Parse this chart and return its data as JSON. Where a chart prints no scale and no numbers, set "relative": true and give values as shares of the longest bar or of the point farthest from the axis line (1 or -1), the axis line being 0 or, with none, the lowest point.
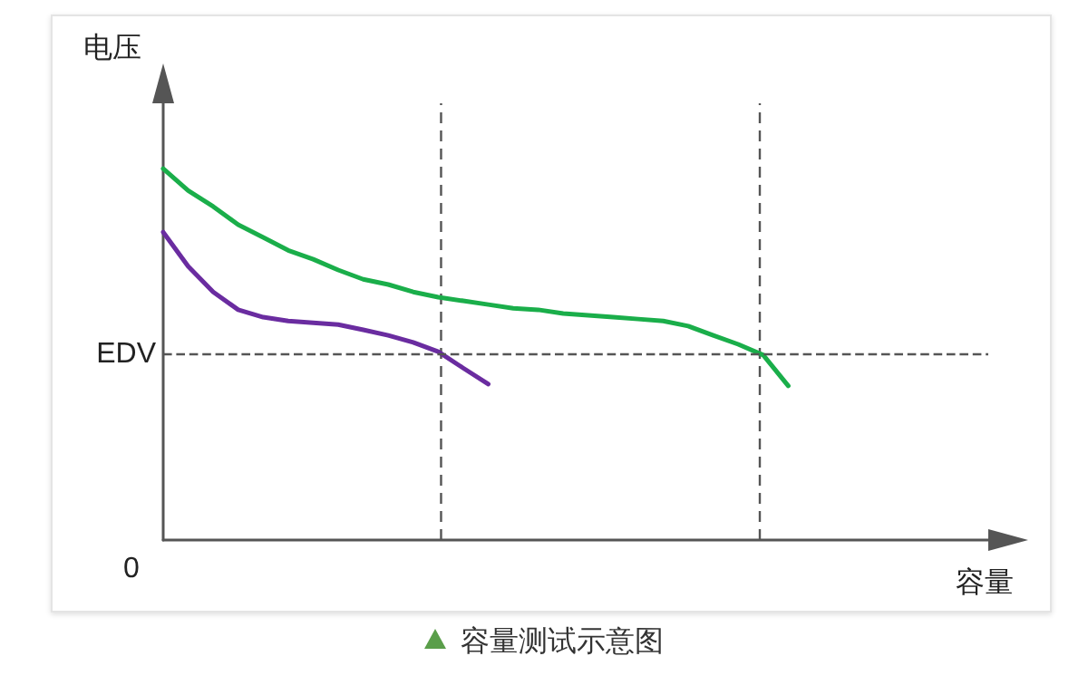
{
  "chart_data": {
    "type": "line",
    "relative": true,
    "ylabel": "电压",
    "xlabel": "容量",
    "grid": false,
    "marker": "none",
    "line_style": "solid",
    "categories": [
      null,
      null,
      null,
      null,
      null,
      null,
      null,
      null,
      null,
      null,
      null,
      null,
      null,
      null,
      null,
      null,
      null,
      null,
      null,
      null,
      null,
      null,
      null,
      null,
      null,
      null,
      null,
      null,
      null,
      null,
      null,
      null,
      null,
      null
    ],
    "series": [
      {
        "color": "#1aae4a",
        "values": [
          1,
          0.941,
          0.898,
          0.849,
          0.815,
          0.78,
          0.756,
          0.727,
          0.702,
          0.688,
          0.668,
          0.654,
          0.644,
          0.634,
          0.624,
          0.62,
          0.61,
          0.605,
          0.6,
          0.595,
          0.59,
          0.576,
          0.551,
          0.527,
          0.498,
          0.415,
          null,
          null,
          null,
          null,
          null,
          null,
          null,
          null
        ]
      },
      {
        "color": "#6a2ca0",
        "values": [
          0.829,
          0.737,
          0.668,
          0.62,
          0.6,
          0.59,
          0.585,
          0.58,
          0.566,
          0.551,
          0.532,
          0.507,
          0.463,
          0.42,
          null,
          null,
          null,
          null,
          null,
          null,
          null,
          null,
          null,
          null,
          null,
          null,
          null,
          null,
          null,
          null,
          null,
          null,
          null,
          null
        ]
      }
    ],
    "ref_lines": [
      {
        "axis": "y",
        "value": 0.502,
        "label": "EDV",
        "color": "#555555",
        "line_style": "dashed"
      }
    ],
    "annotations": [
      "0",
      "容量测试示意图"
    ]
  }
}
